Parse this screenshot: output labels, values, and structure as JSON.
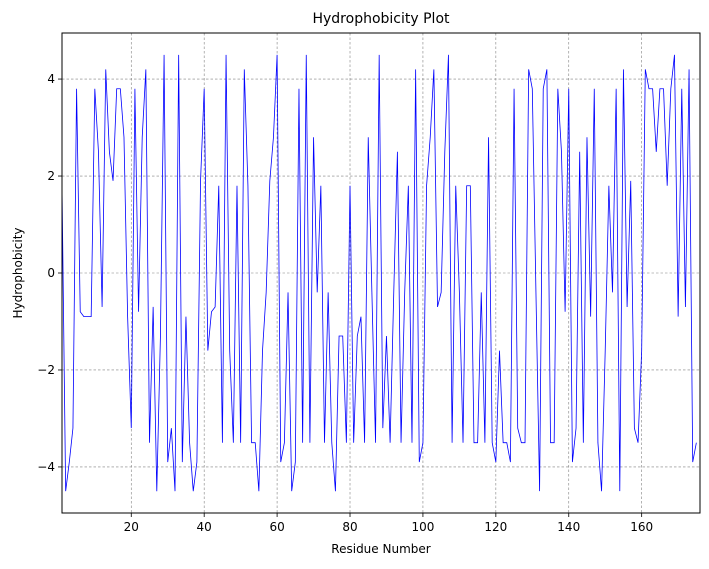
{
  "chart_data": {
    "type": "line",
    "title": "Hydrophobicity Plot",
    "xlabel": "Residue Number",
    "ylabel": "Hydrophobicity",
    "xlim": [
      1,
      176
    ],
    "ylim": [
      -4.95,
      4.95
    ],
    "xticks": [
      20,
      40,
      60,
      80,
      100,
      120,
      140,
      160
    ],
    "yticks": [
      -4,
      -2,
      0,
      2,
      4
    ],
    "ytick_labels": [
      "−4",
      "−2",
      "0",
      "2",
      "4"
    ],
    "grid": true,
    "series": [
      {
        "color": "#0000ff",
        "x_start": 1,
        "values": [
          1.8,
          -4.5,
          -3.9,
          -3.2,
          3.8,
          -0.8,
          -0.9,
          -0.9,
          -0.9,
          3.8,
          2.5,
          -0.7,
          4.2,
          2.5,
          1.9,
          3.8,
          3.8,
          2.8,
          -0.9,
          -3.2,
          3.8,
          -0.8,
          2.8,
          4.2,
          -3.5,
          -0.7,
          -4.5,
          -1.3,
          4.5,
          -3.9,
          -3.2,
          -4.5,
          4.5,
          -3.9,
          -0.9,
          -3.5,
          -4.5,
          -3.9,
          1.9,
          3.8,
          -1.6,
          -0.8,
          -0.7,
          1.8,
          -3.5,
          4.5,
          -1.6,
          -3.5,
          1.8,
          -3.5,
          4.2,
          1.8,
          -3.5,
          -3.5,
          -4.5,
          -1.6,
          -0.4,
          1.9,
          2.8,
          4.5,
          -3.9,
          -3.5,
          -0.4,
          -4.5,
          -3.9,
          3.8,
          -3.5,
          4.5,
          -3.5,
          2.8,
          -0.4,
          1.8,
          -3.5,
          -0.4,
          -3.5,
          -4.5,
          -1.3,
          -1.3,
          -3.5,
          1.8,
          -3.5,
          -1.3,
          -0.9,
          -3.5,
          2.8,
          -0.4,
          -3.5,
          4.5,
          -3.2,
          -1.3,
          -3.5,
          -0.4,
          2.5,
          -3.5,
          -0.4,
          1.8,
          -3.5,
          4.2,
          -3.9,
          -3.5,
          1.8,
          2.8,
          4.2,
          -0.7,
          -0.4,
          2.5,
          4.5,
          -3.5,
          1.8,
          -0.4,
          -3.5,
          1.8,
          1.8,
          -3.5,
          -3.5,
          -0.4,
          -3.5,
          2.8,
          -3.5,
          -3.9,
          -1.6,
          -3.5,
          -3.5,
          -3.9,
          3.8,
          -3.2,
          -3.5,
          -3.5,
          4.2,
          3.8,
          -0.4,
          -4.5,
          3.8,
          4.2,
          -3.5,
          -3.5,
          3.8,
          2.5,
          -0.8,
          3.8,
          -3.9,
          -3.2,
          2.5,
          -3.5,
          2.8,
          -0.9,
          3.8,
          -3.5,
          -4.5,
          -1.6,
          1.8,
          -0.4,
          3.8,
          -4.5,
          4.2,
          -0.7,
          1.9,
          -3.2,
          -3.5,
          -1.6,
          4.2,
          3.8,
          3.8,
          2.5,
          3.8,
          3.8,
          1.8,
          3.8,
          4.5,
          -0.9,
          3.8,
          -0.7,
          4.2,
          -3.9,
          -3.5
        ]
      }
    ]
  }
}
